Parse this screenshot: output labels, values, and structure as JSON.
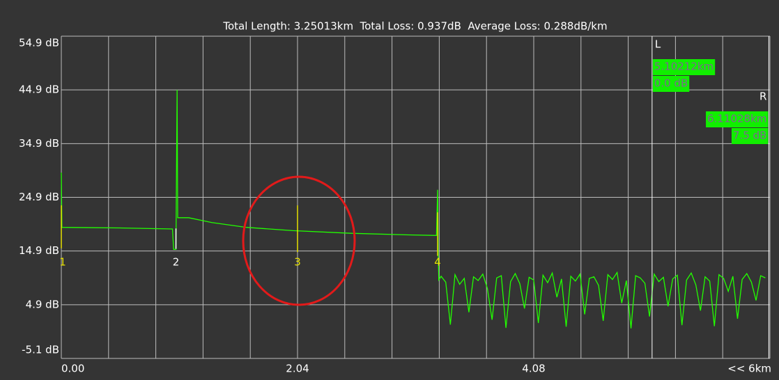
{
  "chart_data": {
    "type": "line",
    "title": "Total Length: 3.25013km  Total Loss: 0.937dB  Average Loss: 0.288dB/km",
    "xlim": [
      0,
      6.12
    ],
    "ylim": [
      -5.1,
      54.9
    ],
    "xticks": [
      {
        "value": 0,
        "label": "0.00"
      },
      {
        "value": 2.04,
        "label": "2.04"
      },
      {
        "value": 4.08,
        "label": "4.08"
      }
    ],
    "x_end_label": "<< 6km",
    "xgrid": [
      0,
      0.408,
      0.816,
      1.224,
      1.632,
      2.04,
      2.448,
      2.856,
      3.264,
      3.672,
      4.08,
      4.488,
      4.896,
      5.304,
      5.712,
      6.12
    ],
    "yticks": [
      {
        "value": 54.9,
        "label": "54.9 dB"
      },
      {
        "value": 44.9,
        "label": "44.9 dB"
      },
      {
        "value": 34.9,
        "label": "34.9 dB"
      },
      {
        "value": 24.9,
        "label": "24.9 dB"
      },
      {
        "value": 14.9,
        "label": "14.9 dB"
      },
      {
        "value": 4.9,
        "label": "4.9 dB"
      },
      {
        "value": -5.1,
        "label": "-5.1 dB"
      }
    ],
    "grid": true,
    "series": [
      {
        "color": "#22ff00",
        "x": [
          0,
          0.005,
          0.5,
          0.96,
          0.97,
          0.99,
          1.0,
          1.005,
          1.1,
          1.3,
          1.6,
          2.0,
          2.5,
          3.0,
          3.24,
          3.25,
          3.255,
          3.26,
          3.28,
          3.32,
          3.36,
          3.4,
          3.44,
          3.48,
          3.52,
          3.56,
          3.6,
          3.64,
          3.68,
          3.72,
          3.76,
          3.8,
          3.84,
          3.88,
          3.92,
          3.96,
          4.0,
          4.04,
          4.08,
          4.12,
          4.16,
          4.2,
          4.24,
          4.28,
          4.32,
          4.36,
          4.4,
          4.44,
          4.48,
          4.52,
          4.56,
          4.6,
          4.64,
          4.68,
          4.72,
          4.76,
          4.8,
          4.84,
          4.88,
          4.92,
          4.96,
          5.0,
          5.04,
          5.08,
          5.12,
          5.16,
          5.2,
          5.24,
          5.28,
          5.32,
          5.36,
          5.4,
          5.44,
          5.48,
          5.52,
          5.56,
          5.6,
          5.64,
          5.68,
          5.72,
          5.76,
          5.8,
          5.84,
          5.88,
          5.92,
          5.96,
          6.0,
          6.04,
          6.08
        ],
        "values": [
          29.5,
          19.3,
          19.2,
          19.0,
          15.2,
          15.2,
          44.9,
          21.1,
          21.1,
          20.2,
          19.3,
          18.7,
          18.2,
          17.9,
          17.8,
          26.3,
          14.5,
          9.5,
          10.2,
          9.1,
          1.2,
          10.5,
          8.7,
          9.8,
          3.5,
          10.1,
          9.4,
          10.6,
          7.9,
          2.1,
          9.9,
          10.3,
          0.6,
          9.2,
          10.7,
          8.8,
          4.2,
          10.0,
          9.5,
          1.5,
          10.4,
          9.0,
          10.8,
          6.3,
          9.7,
          0.8,
          10.2,
          9.3,
          10.6,
          3.1,
          9.8,
          10.1,
          8.5,
          1.9,
          10.5,
          9.6,
          10.9,
          5.2,
          9.4,
          0.5,
          10.3,
          9.9,
          8.9,
          2.7,
          10.6,
          9.2,
          10.0,
          4.6,
          9.7,
          10.4,
          1.1,
          9.5,
          10.8,
          8.6,
          3.8,
          10.1,
          9.3,
          0.9,
          10.5,
          9.8,
          7.4,
          10.2,
          2.3,
          9.6,
          10.7,
          9.1,
          5.7,
          10.3,
          9.9
        ]
      }
    ],
    "events": [
      {
        "label": "1",
        "x": 0,
        "top": 23.4,
        "bottom": 15.4,
        "color": "#e6e000"
      },
      {
        "label": "2",
        "x": 0.99,
        "top": 19.1,
        "bottom": 15.3,
        "color": "#ffffff"
      },
      {
        "label": "3",
        "x": 2.04,
        "top": 23.4,
        "bottom": 14.7,
        "color": "#e6e000"
      },
      {
        "label": "4",
        "x": 3.25,
        "top": 22.1,
        "bottom": 14.0,
        "color": "#e6e000"
      }
    ],
    "cursors": [
      {
        "name": "L",
        "position": {
          "value": 5.10212,
          "label": "5.10212km"
        },
        "loss": "0.0 dB",
        "side": "left"
      },
      {
        "name": "R",
        "position": {
          "value": 6.11028,
          "label": "6.11028km"
        },
        "loss": "7.5 dB",
        "side": "right"
      }
    ]
  }
}
